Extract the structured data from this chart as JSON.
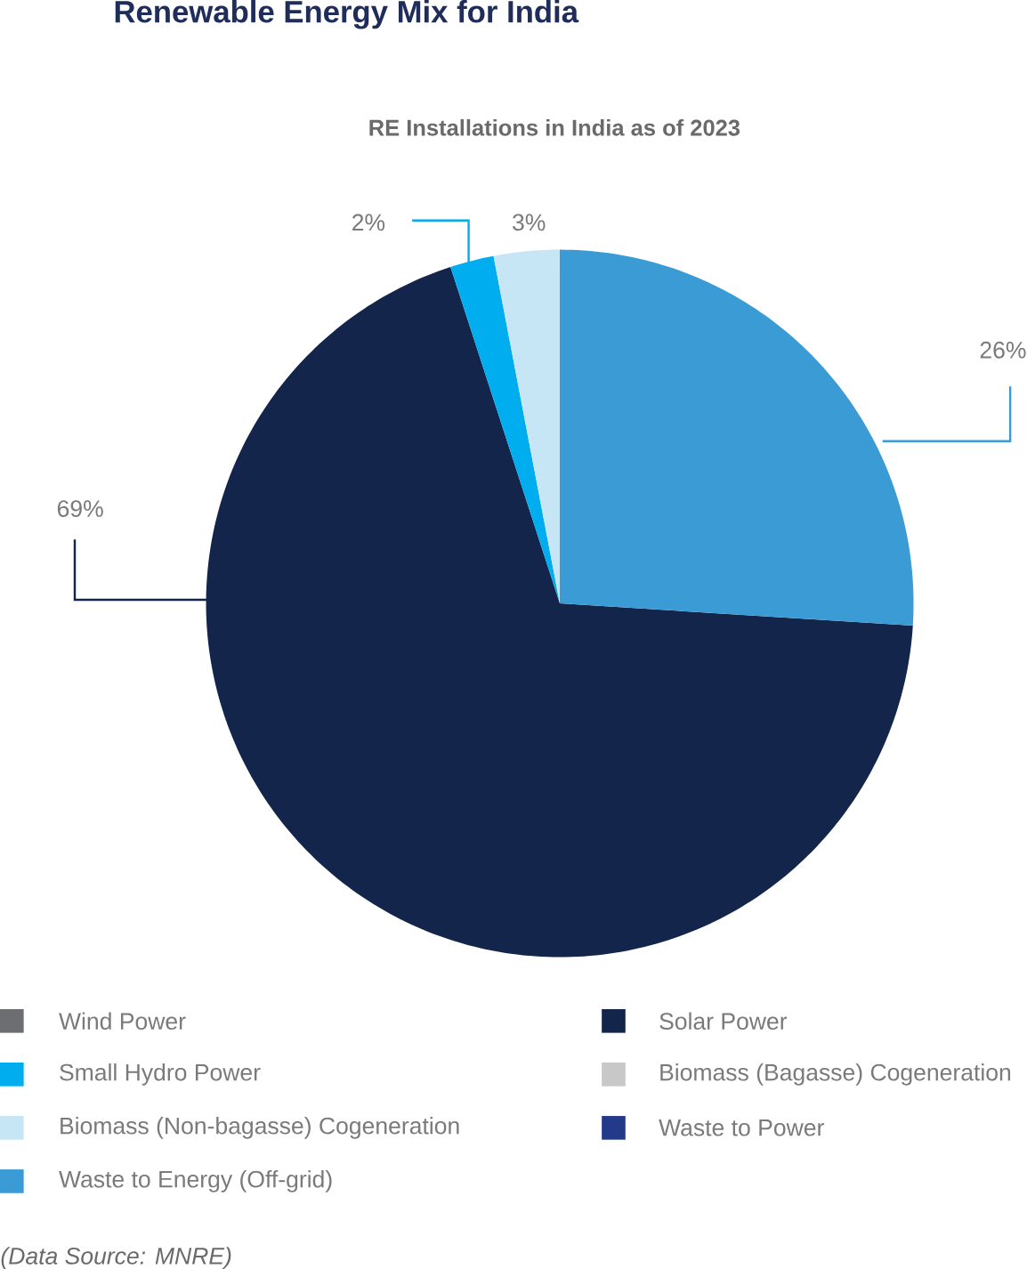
{
  "chart_data": {
    "type": "pie",
    "title": "Renewable Energy Mix for India",
    "subtitle": "RE Installations in India as of 2023",
    "categories": [
      "Wind Power",
      "Solar Power",
      "Small Hydro Power",
      "Biomass (Bagasse) Cogeneration",
      "Biomass (Non-bagasse) Cogeneration",
      "Waste to Power",
      "Waste to Energy (Off-grid)"
    ],
    "values": [
      0,
      69,
      2,
      0,
      3,
      0,
      26
    ],
    "colors": [
      "#6d6e71",
      "#13254a",
      "#00aeef",
      "#c8c8c8",
      "#c6e6f6",
      "#233a8b",
      "#3a9bd5"
    ],
    "value_labels": [
      null,
      "69%",
      "2%",
      null,
      "3%",
      null,
      "26%"
    ],
    "legend": "bottom",
    "annotations": [
      "*(Data Source: MNRE)*"
    ]
  }
}
